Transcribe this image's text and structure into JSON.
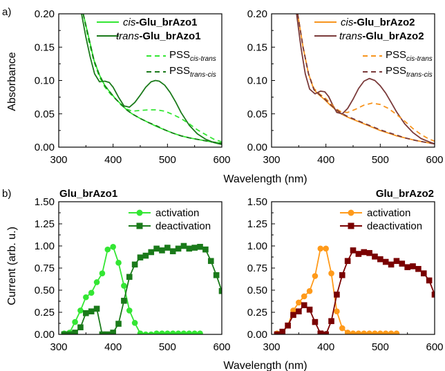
{
  "colors": {
    "light_green": "#33e633",
    "dark_green": "#1a7a1a",
    "light_orange": "#f7941d",
    "dark_brown": "#7a3a3a",
    "bright_orange": "#ff9a1a",
    "dark_red": "#7a0000",
    "axis": "#000000"
  },
  "figure": {
    "label_a": "a)",
    "label_b": "b)",
    "shared_xlabel": "Wavelength (nm)",
    "ylabel_a": "Absorbance",
    "ylabel_b": "Current (arb. u.)",
    "legend_a1": {
      "cis_prefix": "cis",
      "cis_name": "-Glu_brAzo1",
      "trans_prefix": "trans",
      "trans_name": "-Glu_brAzo1",
      "pss_label": "PSS",
      "pss_cis_trans_sub": "cis-trans",
      "pss_trans_cis_sub": "trans-cis"
    },
    "legend_a2": {
      "cis_prefix": "cis",
      "cis_name": "-Glu_brAzo2",
      "trans_prefix": "trans",
      "trans_name": "-Glu_brAzo2",
      "pss_label": "PSS",
      "pss_cis_trans_sub": "cis-trans",
      "pss_trans_cis_sub": "trans-cis"
    },
    "title_b1": "Glu_brAzo1",
    "title_b2": "Glu_brAzo2",
    "legend_b": {
      "activation": "activation",
      "deactivation": "deactivation"
    }
  },
  "chart_data": [
    {
      "panel": "a-left",
      "type": "line",
      "xlim": [
        300,
        600
      ],
      "ylim": [
        0,
        0.2
      ],
      "xticks": [
        300,
        400,
        500,
        600
      ],
      "yticks": [
        "0.00",
        "0.05",
        "0.10",
        "0.15",
        "0.20"
      ],
      "series": [
        {
          "name": "cis-Glu_brAzo1",
          "color": "light_green",
          "dash": false,
          "x": [
            345,
            355,
            365,
            375,
            385,
            395,
            405,
            415,
            425,
            435,
            450,
            465,
            480,
            495,
            510,
            525,
            540,
            560,
            580,
            600
          ],
          "y": [
            0.2,
            0.165,
            0.13,
            0.108,
            0.092,
            0.082,
            0.072,
            0.064,
            0.056,
            0.05,
            0.043,
            0.037,
            0.031,
            0.026,
            0.021,
            0.017,
            0.014,
            0.011,
            0.008,
            0.006
          ]
        },
        {
          "name": "trans-Glu_brAzo1",
          "color": "dark_green",
          "dash": false,
          "x": [
            342,
            350,
            358,
            366,
            375,
            385,
            393,
            400,
            410,
            420,
            430,
            440,
            450,
            460,
            470,
            478,
            485,
            495,
            505,
            515,
            525,
            540,
            555,
            570,
            585,
            600
          ],
          "y": [
            0.2,
            0.165,
            0.135,
            0.11,
            0.098,
            0.099,
            0.097,
            0.09,
            0.075,
            0.062,
            0.06,
            0.067,
            0.078,
            0.09,
            0.098,
            0.1,
            0.099,
            0.093,
            0.082,
            0.068,
            0.052,
            0.033,
            0.02,
            0.012,
            0.007,
            0.004
          ]
        },
        {
          "name": "PSS cis-trans",
          "color": "light_green",
          "dash": true,
          "x": [
            345,
            355,
            365,
            375,
            385,
            395,
            405,
            415,
            425,
            435,
            450,
            465,
            480,
            495,
            510,
            525,
            540,
            555,
            570,
            585,
            600
          ],
          "y": [
            0.2,
            0.16,
            0.128,
            0.105,
            0.09,
            0.08,
            0.072,
            0.063,
            0.057,
            0.054,
            0.055,
            0.056,
            0.056,
            0.054,
            0.049,
            0.043,
            0.035,
            0.026,
            0.019,
            0.012,
            0.008
          ]
        },
        {
          "name": "PSS trans-cis",
          "color": "dark_green",
          "dash": true,
          "x": [
            345,
            355,
            365,
            375,
            385,
            395,
            405,
            415,
            425,
            435,
            450,
            465,
            480,
            495,
            510,
            525,
            540,
            560,
            580,
            600
          ],
          "y": [
            0.2,
            0.165,
            0.13,
            0.108,
            0.092,
            0.082,
            0.072,
            0.064,
            0.056,
            0.05,
            0.043,
            0.037,
            0.032,
            0.026,
            0.021,
            0.017,
            0.014,
            0.011,
            0.008,
            0.006
          ]
        }
      ]
    },
    {
      "panel": "a-right",
      "type": "line",
      "xlim": [
        300,
        600
      ],
      "ylim": [
        0,
        0.2
      ],
      "xticks": [
        300,
        400,
        500,
        600
      ],
      "yticks": [
        "0.00",
        "0.05",
        "0.10",
        "0.15",
        "0.20"
      ],
      "series": [
        {
          "name": "cis-Glu_brAzo2",
          "color": "light_orange",
          "dash": false,
          "x": [
            348,
            358,
            368,
            378,
            388,
            398,
            408,
            418,
            428,
            440,
            455,
            470,
            485,
            500,
            515,
            530,
            545,
            565,
            585,
            600
          ],
          "y": [
            0.2,
            0.15,
            0.11,
            0.086,
            0.078,
            0.071,
            0.063,
            0.056,
            0.05,
            0.045,
            0.04,
            0.035,
            0.03,
            0.025,
            0.021,
            0.017,
            0.014,
            0.01,
            0.007,
            0.005
          ]
        },
        {
          "name": "trans-Glu_brAzo2",
          "color": "dark_brown",
          "dash": false,
          "x": [
            346,
            354,
            362,
            370,
            380,
            390,
            398,
            405,
            412,
            420,
            430,
            440,
            450,
            460,
            470,
            480,
            490,
            500,
            510,
            520,
            530,
            545,
            560,
            575,
            590,
            600
          ],
          "y": [
            0.2,
            0.15,
            0.11,
            0.087,
            0.08,
            0.084,
            0.083,
            0.076,
            0.064,
            0.052,
            0.05,
            0.058,
            0.072,
            0.088,
            0.099,
            0.103,
            0.1,
            0.092,
            0.081,
            0.067,
            0.053,
            0.035,
            0.022,
            0.013,
            0.008,
            0.005
          ]
        },
        {
          "name": "PSS cis-trans",
          "color": "light_orange",
          "dash": true,
          "x": [
            348,
            358,
            368,
            378,
            388,
            398,
            408,
            418,
            428,
            440,
            455,
            470,
            485,
            500,
            515,
            530,
            545,
            560,
            575,
            590,
            600
          ],
          "y": [
            0.2,
            0.15,
            0.11,
            0.088,
            0.08,
            0.074,
            0.066,
            0.058,
            0.053,
            0.052,
            0.057,
            0.063,
            0.066,
            0.064,
            0.058,
            0.049,
            0.039,
            0.028,
            0.019,
            0.012,
            0.009
          ]
        },
        {
          "name": "PSS trans-cis",
          "color": "dark_brown",
          "dash": true,
          "x": [
            348,
            358,
            368,
            378,
            388,
            398,
            408,
            418,
            428,
            440,
            455,
            470,
            485,
            500,
            515,
            530,
            545,
            565,
            585,
            600
          ],
          "y": [
            0.2,
            0.15,
            0.11,
            0.086,
            0.079,
            0.072,
            0.064,
            0.057,
            0.051,
            0.046,
            0.041,
            0.036,
            0.031,
            0.026,
            0.022,
            0.018,
            0.014,
            0.01,
            0.007,
            0.005
          ]
        }
      ]
    },
    {
      "panel": "b-left",
      "type": "line",
      "title": "Glu_brAzo1",
      "xlim": [
        300,
        600
      ],
      "ylim": [
        0,
        1.5
      ],
      "xticks": [
        300,
        400,
        500,
        600
      ],
      "yticks": [
        "0.00",
        "0.25",
        "0.50",
        "0.75",
        "1.00",
        "1.25",
        "1.50"
      ],
      "series": [
        {
          "name": "activation",
          "color": "light_green",
          "marker": "circle",
          "x": [
            310,
            320,
            330,
            340,
            350,
            360,
            370,
            380,
            390,
            400,
            410,
            420,
            430,
            440,
            450,
            460,
            470,
            480,
            490,
            500,
            510,
            520,
            530,
            540,
            550,
            560
          ],
          "y": [
            0.01,
            0.02,
            0.14,
            0.27,
            0.42,
            0.47,
            0.59,
            0.69,
            0.96,
            0.99,
            0.81,
            0.55,
            0.27,
            0.13,
            0.01,
            0.0,
            0.0,
            0.01,
            0.01,
            0.01,
            0.01,
            0.01,
            0.01,
            0.01,
            0.01,
            0.01
          ]
        },
        {
          "name": "deactivation",
          "color": "dark_green",
          "marker": "square",
          "x": [
            310,
            320,
            330,
            340,
            350,
            360,
            370,
            380,
            390,
            400,
            410,
            420,
            430,
            440,
            450,
            460,
            470,
            480,
            490,
            500,
            510,
            520,
            530,
            540,
            550,
            560,
            570,
            580,
            590,
            600
          ],
          "y": [
            0.0,
            0.0,
            0.02,
            0.08,
            0.24,
            0.26,
            0.29,
            0.0,
            0.0,
            0.02,
            0.12,
            0.38,
            0.65,
            0.79,
            0.87,
            0.89,
            0.93,
            0.97,
            0.95,
            0.98,
            0.94,
            0.97,
            1.0,
            0.97,
            0.98,
            0.99,
            0.96,
            0.83,
            0.67,
            0.49
          ]
        }
      ]
    },
    {
      "panel": "b-right",
      "type": "line",
      "title": "Glu_brAzo2",
      "xlim": [
        300,
        600
      ],
      "ylim": [
        0,
        1.5
      ],
      "xticks": [
        300,
        400,
        500,
        600
      ],
      "yticks": [
        "0.00",
        "0.25",
        "0.50",
        "0.75",
        "1.00",
        "1.25",
        "1.50"
      ],
      "series": [
        {
          "name": "activation",
          "color": "bright_orange",
          "marker": "circle",
          "x": [
            310,
            320,
            330,
            340,
            350,
            360,
            370,
            380,
            390,
            400,
            410,
            420,
            430,
            440,
            450,
            460,
            470,
            480,
            490,
            500,
            510,
            520,
            530
          ],
          "y": [
            0.01,
            0.02,
            0.1,
            0.27,
            0.36,
            0.43,
            0.49,
            0.66,
            0.97,
            0.97,
            0.69,
            0.26,
            0.07,
            0.02,
            0.01,
            0.01,
            0.01,
            0.01,
            0.01,
            0.01,
            0.01,
            0.01,
            0.01
          ]
        },
        {
          "name": "deactivation",
          "color": "dark_red",
          "marker": "square",
          "x": [
            310,
            320,
            330,
            340,
            350,
            360,
            370,
            380,
            390,
            400,
            410,
            420,
            430,
            440,
            450,
            460,
            470,
            480,
            490,
            500,
            510,
            520,
            530,
            540,
            550,
            560,
            570,
            580,
            590,
            600
          ],
          "y": [
            0.0,
            0.03,
            0.1,
            0.22,
            0.26,
            0.33,
            0.28,
            0.14,
            0.01,
            0.0,
            0.15,
            0.45,
            0.67,
            0.83,
            0.95,
            0.91,
            0.93,
            0.92,
            0.88,
            0.85,
            0.82,
            0.79,
            0.83,
            0.8,
            0.76,
            0.77,
            0.74,
            0.69,
            0.61,
            0.45
          ]
        }
      ]
    }
  ]
}
